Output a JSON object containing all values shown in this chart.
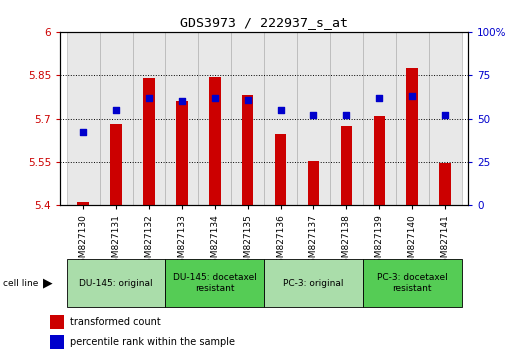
{
  "title": "GDS3973 / 222937_s_at",
  "samples": [
    "GSM827130",
    "GSM827131",
    "GSM827132",
    "GSM827133",
    "GSM827134",
    "GSM827135",
    "GSM827136",
    "GSM827137",
    "GSM827138",
    "GSM827139",
    "GSM827140",
    "GSM827141"
  ],
  "transformed_count": [
    5.41,
    5.68,
    5.84,
    5.76,
    5.845,
    5.78,
    5.645,
    5.555,
    5.675,
    5.71,
    5.875,
    5.545
  ],
  "percentile_rank": [
    42,
    55,
    62,
    60,
    62,
    61,
    55,
    52,
    52,
    62,
    63,
    52
  ],
  "ylim_left": [
    5.4,
    6.0
  ],
  "ylim_right": [
    0,
    100
  ],
  "yticks_left": [
    5.4,
    5.55,
    5.7,
    5.85,
    6.0
  ],
  "yticks_right": [
    0,
    25,
    50,
    75,
    100
  ],
  "ytick_labels_left": [
    "5.4",
    "5.55",
    "5.7",
    "5.85",
    "6"
  ],
  "ytick_labels_right": [
    "0",
    "25",
    "50",
    "75",
    "100%"
  ],
  "hlines": [
    5.55,
    5.7,
    5.85
  ],
  "bar_color": "#cc0000",
  "dot_color": "#0000cc",
  "bar_base": 5.4,
  "groups": [
    {
      "label": "DU-145: original",
      "start": 0,
      "end": 3,
      "color": "#aaddaa"
    },
    {
      "label": "DU-145: docetaxel\nresistant",
      "start": 3,
      "end": 6,
      "color": "#55cc55"
    },
    {
      "label": "PC-3: original",
      "start": 6,
      "end": 9,
      "color": "#aaddaa"
    },
    {
      "label": "PC-3: docetaxel\nresistant",
      "start": 9,
      "end": 12,
      "color": "#55cc55"
    }
  ],
  "cell_line_label": "cell line",
  "legend_bar_label": "transformed count",
  "legend_dot_label": "percentile rank within the sample",
  "background_color": "#ffffff",
  "plot_bg": "#ffffff",
  "tick_label_color_left": "#cc0000",
  "tick_label_color_right": "#0000cc",
  "col_bg": "#e8e8e8"
}
